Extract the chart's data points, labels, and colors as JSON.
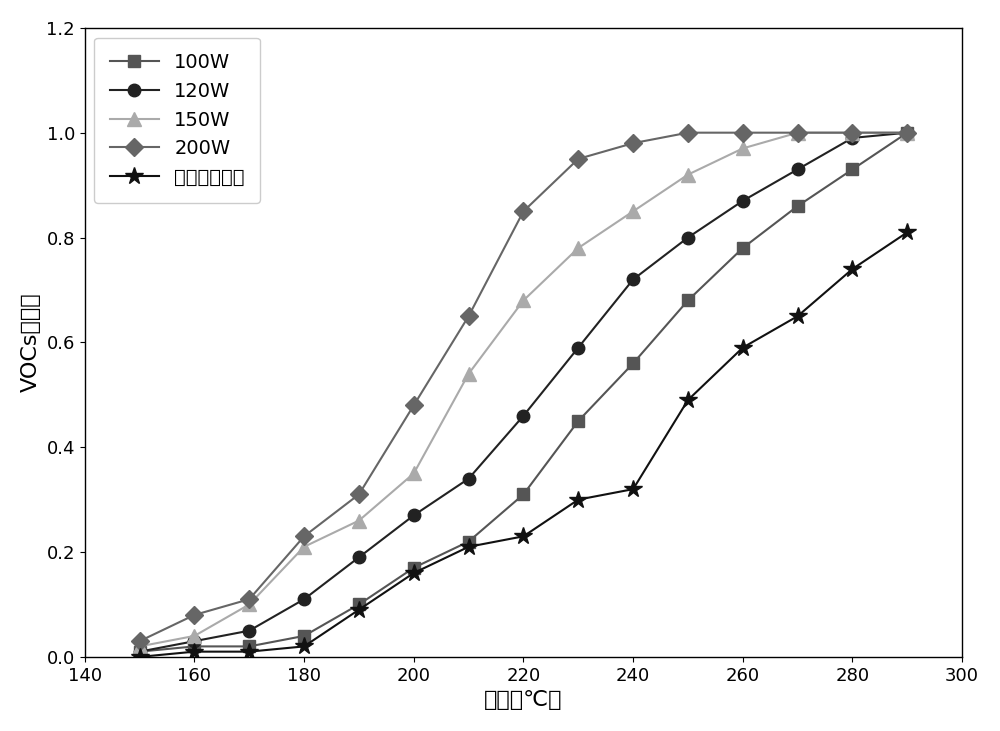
{
  "series": [
    {
      "label": "100W",
      "color": "#555555",
      "marker": "s",
      "linestyle": "-",
      "x": [
        150,
        160,
        170,
        180,
        190,
        200,
        210,
        220,
        230,
        240,
        250,
        260,
        270,
        280,
        290
      ],
      "y": [
        0.01,
        0.02,
        0.02,
        0.04,
        0.1,
        0.17,
        0.22,
        0.31,
        0.45,
        0.56,
        0.68,
        0.78,
        0.86,
        0.93,
        1.0
      ]
    },
    {
      "label": "120W",
      "color": "#222222",
      "marker": "o",
      "linestyle": "-",
      "x": [
        150,
        160,
        170,
        180,
        190,
        200,
        210,
        220,
        230,
        240,
        250,
        260,
        270,
        280,
        290
      ],
      "y": [
        0.01,
        0.03,
        0.05,
        0.11,
        0.19,
        0.27,
        0.34,
        0.46,
        0.59,
        0.72,
        0.8,
        0.87,
        0.93,
        0.99,
        1.0
      ]
    },
    {
      "label": "150W",
      "color": "#aaaaaa",
      "marker": "^",
      "linestyle": "-",
      "x": [
        150,
        160,
        170,
        180,
        190,
        200,
        210,
        220,
        230,
        240,
        250,
        260,
        270,
        280,
        290
      ],
      "y": [
        0.02,
        0.04,
        0.1,
        0.21,
        0.26,
        0.35,
        0.54,
        0.68,
        0.78,
        0.85,
        0.92,
        0.97,
        1.0,
        1.0,
        1.0
      ]
    },
    {
      "label": "200W",
      "color": "#666666",
      "marker": "D",
      "linestyle": "-",
      "x": [
        150,
        160,
        170,
        180,
        190,
        200,
        210,
        220,
        230,
        240,
        250,
        260,
        270,
        280,
        290
      ],
      "y": [
        0.03,
        0.08,
        0.11,
        0.23,
        0.31,
        0.48,
        0.65,
        0.85,
        0.95,
        0.98,
        1.0,
        1.0,
        1.0,
        1.0,
        1.0
      ]
    },
    {
      "label": "普通方式加热",
      "color": "#111111",
      "marker": "*",
      "linestyle": "-",
      "x": [
        150,
        160,
        170,
        180,
        190,
        200,
        210,
        220,
        230,
        240,
        250,
        260,
        270,
        280,
        290
      ],
      "y": [
        0.0,
        0.01,
        0.01,
        0.02,
        0.09,
        0.16,
        0.21,
        0.23,
        0.3,
        0.32,
        0.49,
        0.59,
        0.65,
        0.74,
        0.81
      ]
    }
  ],
  "xlabel": "温度（℃）",
  "ylabel": "VOCs转化率",
  "xlim": [
    140,
    300
  ],
  "ylim": [
    0,
    1.2
  ],
  "xticks": [
    140,
    160,
    180,
    200,
    220,
    240,
    260,
    280,
    300
  ],
  "yticks": [
    0.0,
    0.2,
    0.4,
    0.6,
    0.8,
    1.0,
    1.2
  ],
  "legend_loc": "upper left",
  "background_color": "#ffffff",
  "marker_size": 9,
  "line_width": 1.5
}
